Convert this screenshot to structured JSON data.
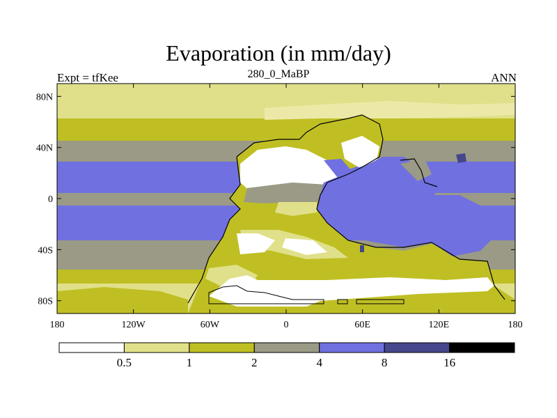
{
  "chart_data": {
    "type": "contour-map",
    "title": "Evaporation (in mm/day)",
    "left_string": "Expt = tfKee",
    "center_string": "280_0_MaBP",
    "right_string": "ANN",
    "x_ticks": [
      "180",
      "120W",
      "60W",
      "0",
      "60E",
      "120E",
      "180"
    ],
    "y_ticks": [
      "80N",
      "40N",
      "0",
      "40S",
      "80S"
    ],
    "xlim": [
      -180,
      180
    ],
    "ylim": [
      -90,
      90
    ],
    "colorbar": {
      "levels": [
        "0.5",
        "1",
        "2",
        "4",
        "8",
        "16"
      ],
      "colors": [
        "#ffffff",
        "#e0e08a",
        "#bfbf24",
        "#9a9a86",
        "#7070e0",
        "#46468c",
        "#000000"
      ]
    }
  }
}
